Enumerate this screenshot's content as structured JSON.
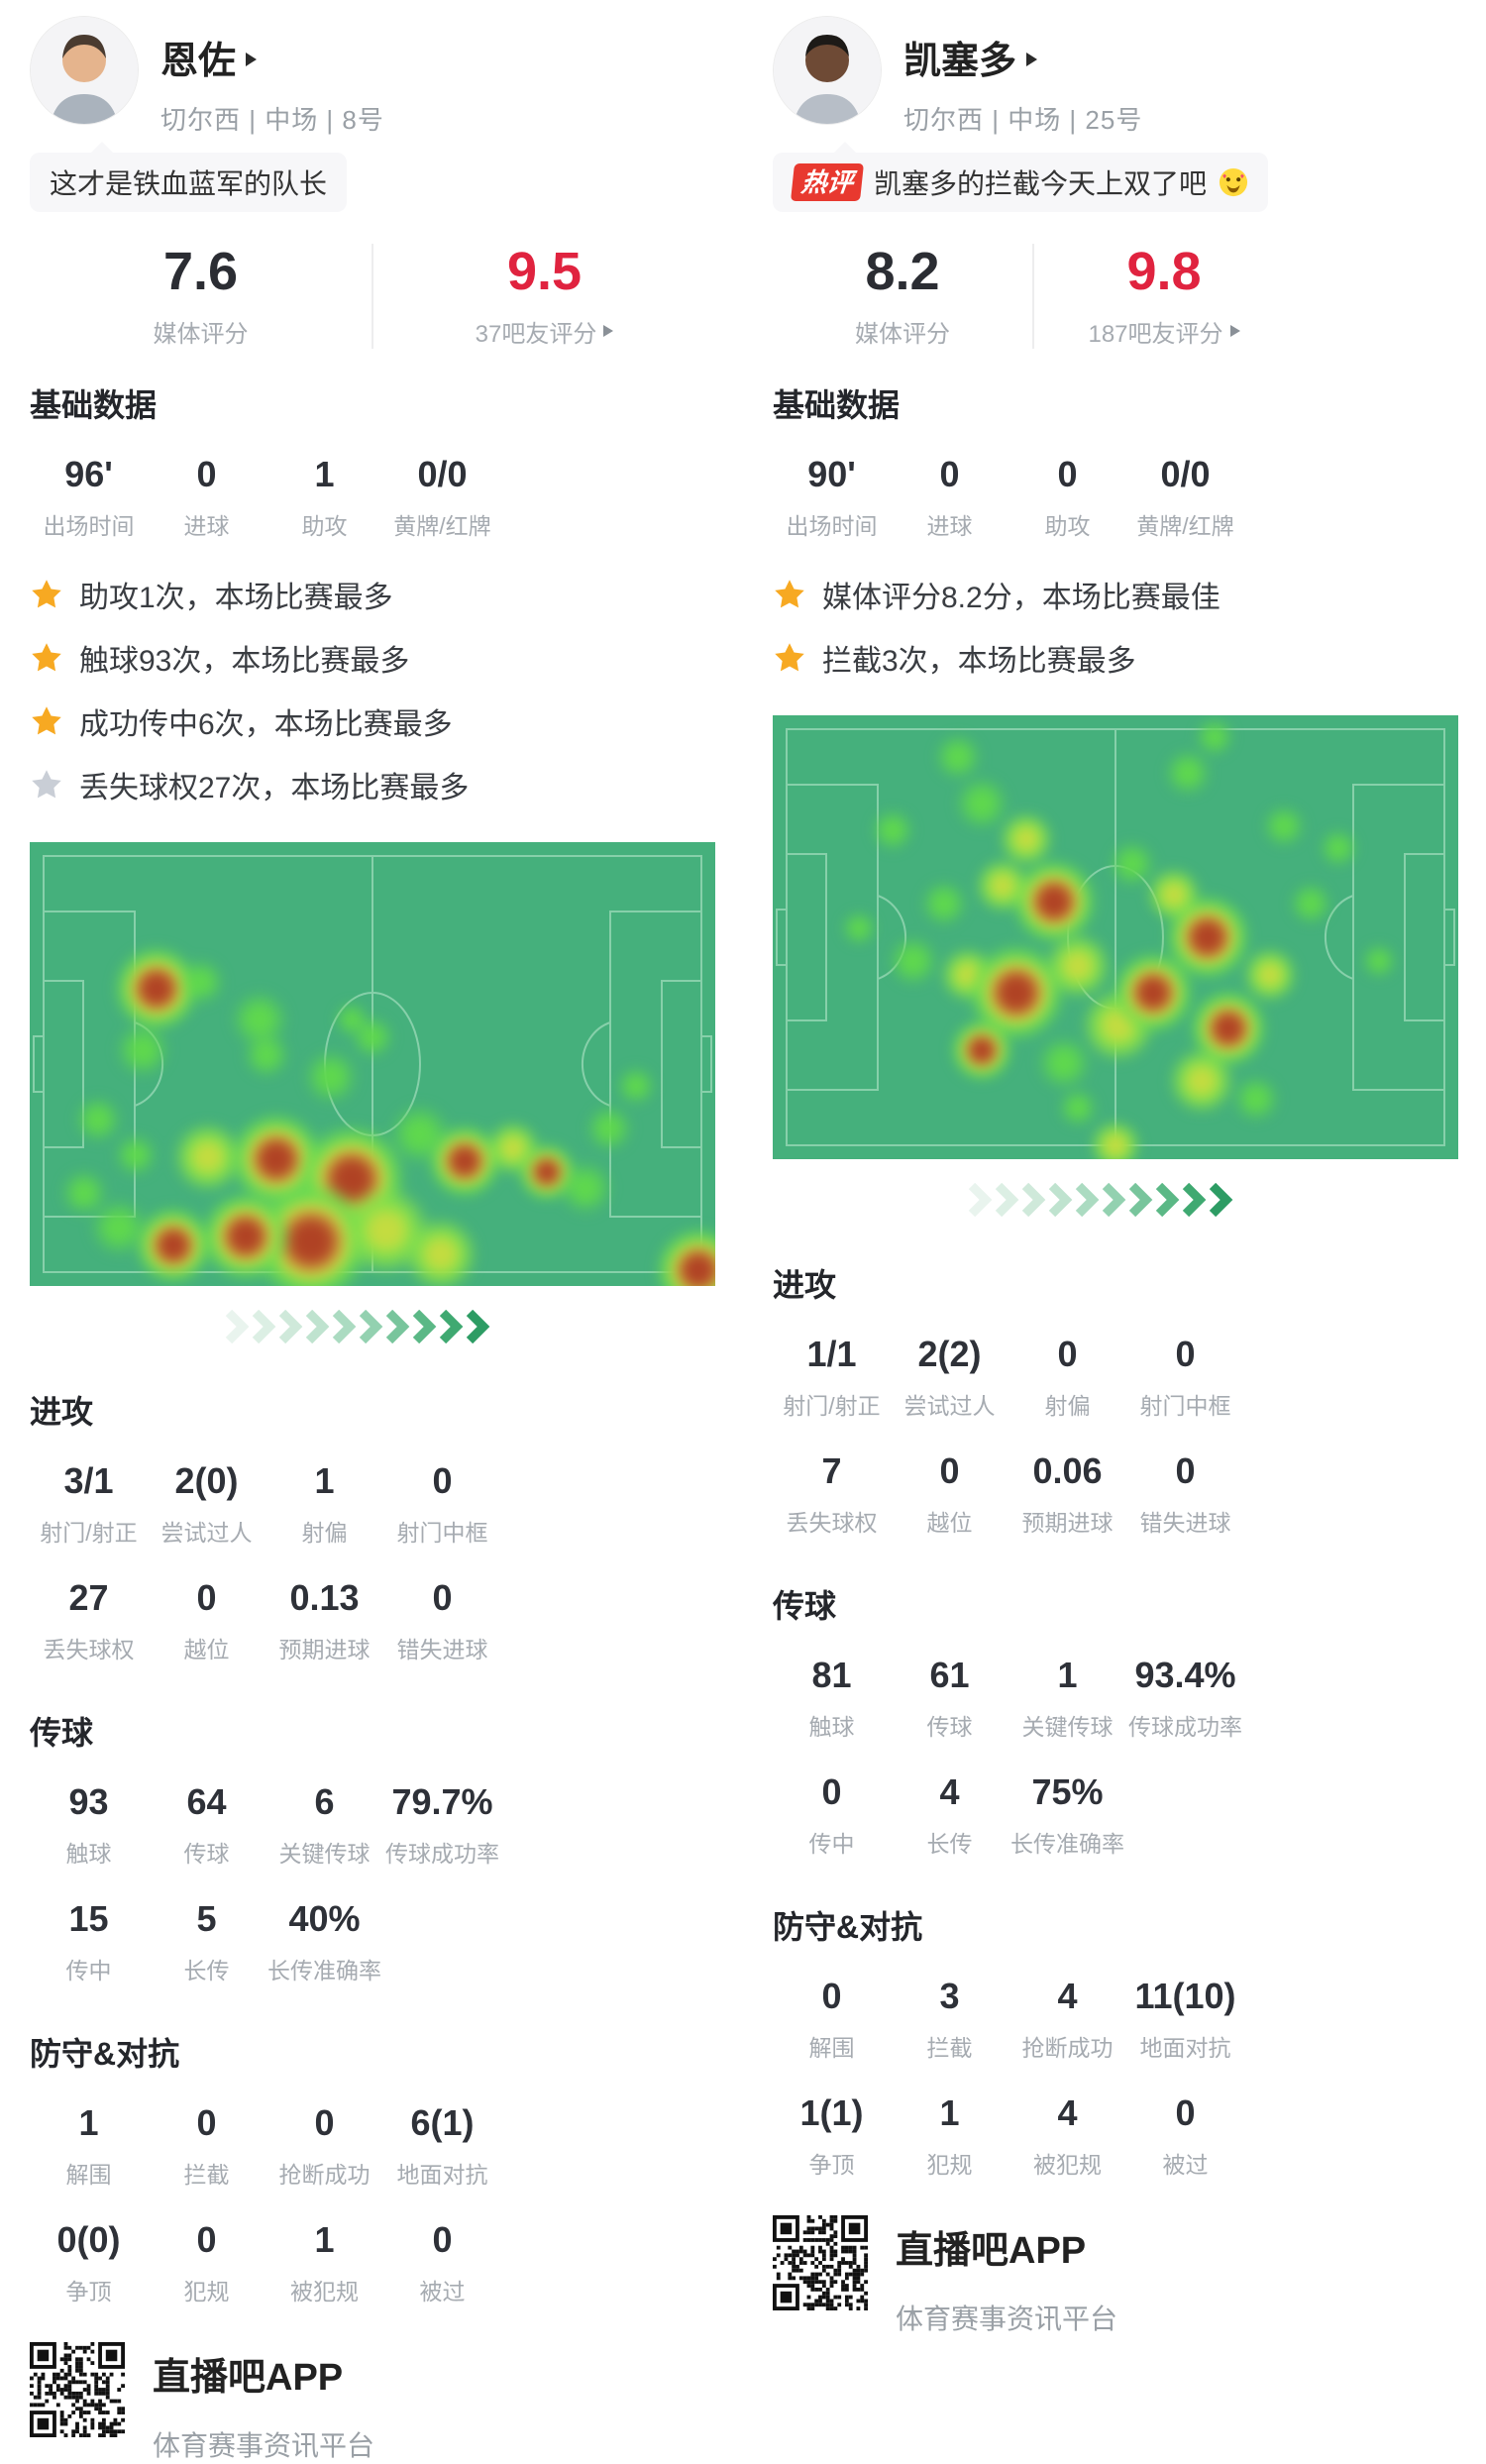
{
  "colors": {
    "accent_red": "#e0233f",
    "badge_red": "#e8392f",
    "star_gold": "#f7a922",
    "star_gray": "#c9ced6",
    "pitch_green": "#45b07c",
    "pitch_line": "#93d6b3"
  },
  "players": [
    {
      "name": "恩佐",
      "team_line": "切尔西 | 中场 | 8号",
      "quote": "这才是铁血蓝军的队长",
      "media_rating": "7.6",
      "media_label": "媒体评分",
      "fan_rating": "9.5",
      "fan_label": "37吧友评分",
      "basic_title": "基础数据",
      "basic": [
        {
          "v": "96'",
          "l": "出场时间"
        },
        {
          "v": "0",
          "l": "进球"
        },
        {
          "v": "1",
          "l": "助攻"
        },
        {
          "v": "0/0",
          "l": "黄牌/红牌"
        }
      ],
      "highlights": [
        {
          "icon": "star",
          "tone": "gold",
          "text": "助攻1次，本场比赛最多"
        },
        {
          "icon": "star",
          "tone": "gold",
          "text": "触球93次，本场比赛最多"
        },
        {
          "icon": "star",
          "tone": "gold",
          "text": "成功传中6次，本场比赛最多"
        },
        {
          "icon": "star",
          "tone": "gray",
          "text": "丢失球权27次，本场比赛最多"
        }
      ],
      "sections": [
        {
          "title": "进攻",
          "rows": [
            [
              {
                "v": "3/1",
                "l": "射门/射正"
              },
              {
                "v": "2(0)",
                "l": "尝试过人"
              },
              {
                "v": "1",
                "l": "射偏"
              },
              {
                "v": "0",
                "l": "射门中框"
              }
            ],
            [
              {
                "v": "27",
                "l": "丢失球权"
              },
              {
                "v": "0",
                "l": "越位"
              },
              {
                "v": "0.13",
                "l": "预期进球"
              },
              {
                "v": "0",
                "l": "错失进球"
              }
            ]
          ]
        },
        {
          "title": "传球",
          "rows": [
            [
              {
                "v": "93",
                "l": "触球"
              },
              {
                "v": "64",
                "l": "传球"
              },
              {
                "v": "6",
                "l": "关键传球"
              },
              {
                "v": "79.7%",
                "l": "传球成功率"
              }
            ],
            [
              {
                "v": "15",
                "l": "传中"
              },
              {
                "v": "5",
                "l": "长传"
              },
              {
                "v": "40%",
                "l": "长传准确率"
              }
            ]
          ]
        },
        {
          "title": "防守&对抗",
          "rows": [
            [
              {
                "v": "1",
                "l": "解围"
              },
              {
                "v": "0",
                "l": "拦截"
              },
              {
                "v": "0",
                "l": "抢断成功"
              },
              {
                "v": "6(1)",
                "l": "地面对抗"
              }
            ],
            [
              {
                "v": "0(0)",
                "l": "争顶"
              },
              {
                "v": "0",
                "l": "犯规"
              },
              {
                "v": "1",
                "l": "被犯规"
              },
              {
                "v": "0",
                "l": "被过"
              }
            ]
          ]
        }
      ],
      "heatmap": {
        "blobs": [
          [
            0.185,
            0.33,
            44,
            "r"
          ],
          [
            0.25,
            0.315,
            24,
            "g"
          ],
          [
            0.165,
            0.47,
            28,
            "g"
          ],
          [
            0.1,
            0.625,
            24,
            "g"
          ],
          [
            0.155,
            0.705,
            22,
            "g"
          ],
          [
            0.335,
            0.4,
            30,
            "g"
          ],
          [
            0.345,
            0.48,
            24,
            "g"
          ],
          [
            0.44,
            0.53,
            28,
            "g"
          ],
          [
            0.5,
            0.44,
            22,
            "g"
          ],
          [
            0.47,
            0.4,
            18,
            "g"
          ],
          [
            0.26,
            0.71,
            36,
            "y"
          ],
          [
            0.36,
            0.715,
            48,
            "r"
          ],
          [
            0.47,
            0.76,
            56,
            "r"
          ],
          [
            0.41,
            0.9,
            62,
            "r"
          ],
          [
            0.315,
            0.89,
            46,
            "r"
          ],
          [
            0.21,
            0.91,
            40,
            "r"
          ],
          [
            0.13,
            0.87,
            30,
            "g"
          ],
          [
            0.08,
            0.79,
            24,
            "g"
          ],
          [
            0.52,
            0.875,
            46,
            "y"
          ],
          [
            0.6,
            0.93,
            38,
            "y"
          ],
          [
            0.57,
            0.66,
            32,
            "g"
          ],
          [
            0.635,
            0.72,
            38,
            "r"
          ],
          [
            0.705,
            0.69,
            28,
            "y"
          ],
          [
            0.755,
            0.745,
            30,
            "r"
          ],
          [
            0.81,
            0.78,
            28,
            "g"
          ],
          [
            0.845,
            0.645,
            24,
            "g"
          ],
          [
            0.885,
            0.55,
            20,
            "g"
          ],
          [
            0.975,
            0.965,
            44,
            "r"
          ]
        ]
      },
      "footer": {
        "app": "直播吧APP",
        "tagline": "体育赛事资讯平台"
      }
    },
    {
      "name": "凯塞多",
      "team_line": "切尔西 | 中场 | 25号",
      "quote_badge": "热评",
      "quote": "凯塞多的拦截今天上双了吧",
      "quote_emoji_icon": "smiling-face-with-hearts",
      "media_rating": "8.2",
      "media_label": "媒体评分",
      "fan_rating": "9.8",
      "fan_label": "187吧友评分",
      "basic_title": "基础数据",
      "basic": [
        {
          "v": "90'",
          "l": "出场时间"
        },
        {
          "v": "0",
          "l": "进球"
        },
        {
          "v": "0",
          "l": "助攻"
        },
        {
          "v": "0/0",
          "l": "黄牌/红牌"
        }
      ],
      "highlights": [
        {
          "icon": "star",
          "tone": "gold",
          "text": "媒体评分8.2分，本场比赛最佳"
        },
        {
          "icon": "star",
          "tone": "gold",
          "text": "拦截3次，本场比赛最多"
        }
      ],
      "sections": [
        {
          "title": "进攻",
          "rows": [
            [
              {
                "v": "1/1",
                "l": "射门/射正"
              },
              {
                "v": "2(2)",
                "l": "尝试过人"
              },
              {
                "v": "0",
                "l": "射偏"
              },
              {
                "v": "0",
                "l": "射门中框"
              }
            ],
            [
              {
                "v": "7",
                "l": "丢失球权"
              },
              {
                "v": "0",
                "l": "越位"
              },
              {
                "v": "0.06",
                "l": "预期进球"
              },
              {
                "v": "0",
                "l": "错失进球"
              }
            ]
          ]
        },
        {
          "title": "传球",
          "rows": [
            [
              {
                "v": "81",
                "l": "触球"
              },
              {
                "v": "61",
                "l": "传球"
              },
              {
                "v": "1",
                "l": "关键传球"
              },
              {
                "v": "93.4%",
                "l": "传球成功率"
              }
            ],
            [
              {
                "v": "0",
                "l": "传中"
              },
              {
                "v": "4",
                "l": "长传"
              },
              {
                "v": "75%",
                "l": "长传准确率"
              }
            ]
          ]
        },
        {
          "title": "防守&对抗",
          "rows": [
            [
              {
                "v": "0",
                "l": "解围"
              },
              {
                "v": "3",
                "l": "拦截"
              },
              {
                "v": "4",
                "l": "抢断成功"
              },
              {
                "v": "11(10)",
                "l": "地面对抗"
              }
            ],
            [
              {
                "v": "1(1)",
                "l": "争顶"
              },
              {
                "v": "1",
                "l": "犯规"
              },
              {
                "v": "4",
                "l": "被犯规"
              },
              {
                "v": "0",
                "l": "被过"
              }
            ]
          ]
        }
      ],
      "heatmap": {
        "blobs": [
          [
            0.27,
            0.095,
            24,
            "g"
          ],
          [
            0.305,
            0.2,
            28,
            "g"
          ],
          [
            0.175,
            0.26,
            22,
            "g"
          ],
          [
            0.37,
            0.28,
            28,
            "y"
          ],
          [
            0.41,
            0.42,
            44,
            "r"
          ],
          [
            0.335,
            0.385,
            28,
            "y"
          ],
          [
            0.25,
            0.425,
            24,
            "g"
          ],
          [
            0.205,
            0.555,
            26,
            "g"
          ],
          [
            0.285,
            0.585,
            28,
            "y"
          ],
          [
            0.355,
            0.625,
            50,
            "r"
          ],
          [
            0.445,
            0.565,
            34,
            "y"
          ],
          [
            0.305,
            0.755,
            32,
            "r"
          ],
          [
            0.425,
            0.785,
            28,
            "g"
          ],
          [
            0.505,
            0.7,
            38,
            "y"
          ],
          [
            0.555,
            0.625,
            42,
            "r"
          ],
          [
            0.635,
            0.5,
            44,
            "r"
          ],
          [
            0.585,
            0.405,
            28,
            "y"
          ],
          [
            0.525,
            0.335,
            24,
            "g"
          ],
          [
            0.665,
            0.705,
            40,
            "r"
          ],
          [
            0.725,
            0.585,
            28,
            "y"
          ],
          [
            0.625,
            0.825,
            34,
            "y"
          ],
          [
            0.705,
            0.865,
            24,
            "g"
          ],
          [
            0.785,
            0.425,
            22,
            "g"
          ],
          [
            0.825,
            0.3,
            20,
            "g"
          ],
          [
            0.745,
            0.25,
            22,
            "g"
          ],
          [
            0.605,
            0.13,
            24,
            "g"
          ],
          [
            0.645,
            0.05,
            20,
            "g"
          ],
          [
            0.885,
            0.555,
            18,
            "g"
          ],
          [
            0.5,
            0.97,
            26,
            "y"
          ],
          [
            0.445,
            0.885,
            20,
            "g"
          ],
          [
            0.125,
            0.48,
            18,
            "g"
          ]
        ]
      },
      "footer": {
        "app": "直播吧APP",
        "tagline": "体育赛事资讯平台"
      }
    }
  ]
}
